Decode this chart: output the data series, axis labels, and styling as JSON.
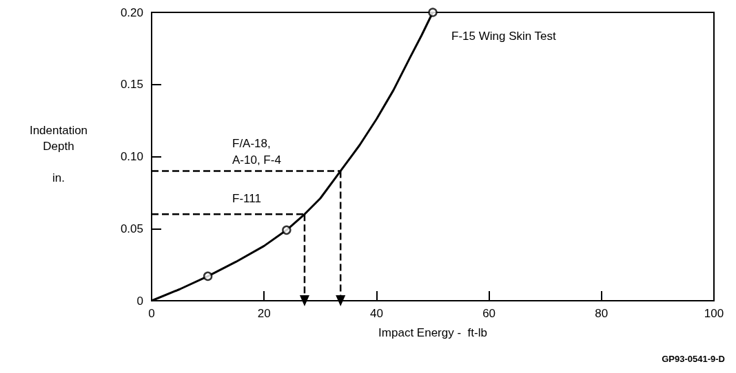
{
  "chart_data": {
    "type": "line",
    "xlabel": "Impact Energy -  ft-lb",
    "ylabel": "Indentation\nDepth\n\nin.",
    "xlim": [
      0,
      100
    ],
    "xticks": [
      0,
      20,
      40,
      60,
      80,
      100
    ],
    "ylim": [
      0,
      0.2
    ],
    "yticks": [
      0,
      0.05,
      {
        "value": 0.1,
        "label": "0.10"
      },
      0.15,
      {
        "value": 0.2,
        "label": "0.20"
      }
    ],
    "grid": false,
    "series": [
      {
        "color": "#000000",
        "marker": "none",
        "line_style": "solid",
        "x": [
          0,
          5,
          10,
          15,
          20,
          24,
          27.2,
          30,
          33.6,
          37,
          40,
          43,
          46,
          48,
          50
        ],
        "values": [
          0,
          0.008,
          0.017,
          0.027,
          0.038,
          0.049,
          0.06,
          0.071,
          0.09,
          0.108,
          0.126,
          0.146,
          0.169,
          0.184,
          0.2
        ]
      },
      {
        "type": "scatter",
        "color": "#000000",
        "marker": "circle",
        "x": [
          10,
          24,
          50
        ],
        "values": [
          0.017,
          0.049,
          0.2
        ]
      },
      {
        "type": "line",
        "color": "#000000",
        "marker": "none",
        "line_style": "dashed",
        "x": [
          0,
          33.6
        ],
        "values": [
          0.09,
          0.09
        ]
      },
      {
        "type": "line",
        "color": "#000000",
        "marker": "none",
        "line_style": "dashed",
        "x": [
          0,
          27.2
        ],
        "values": [
          0.06,
          0.06
        ]
      },
      {
        "type": "line",
        "color": "#000000",
        "marker": "triangle",
        "line_style": "dashed",
        "x": [
          33.6,
          33.6
        ],
        "values": [
          0.09,
          0
        ]
      },
      {
        "type": "line",
        "color": "#000000",
        "marker": "triangle",
        "line_style": "dashed",
        "x": [
          27.2,
          27.2
        ],
        "values": [
          0.06,
          0
        ]
      }
    ],
    "annotations": [
      "F-15 Wing Skin Test",
      "F/A-18,\nA-10, F-4",
      "F-111",
      "GP93-0541-9-D"
    ]
  }
}
